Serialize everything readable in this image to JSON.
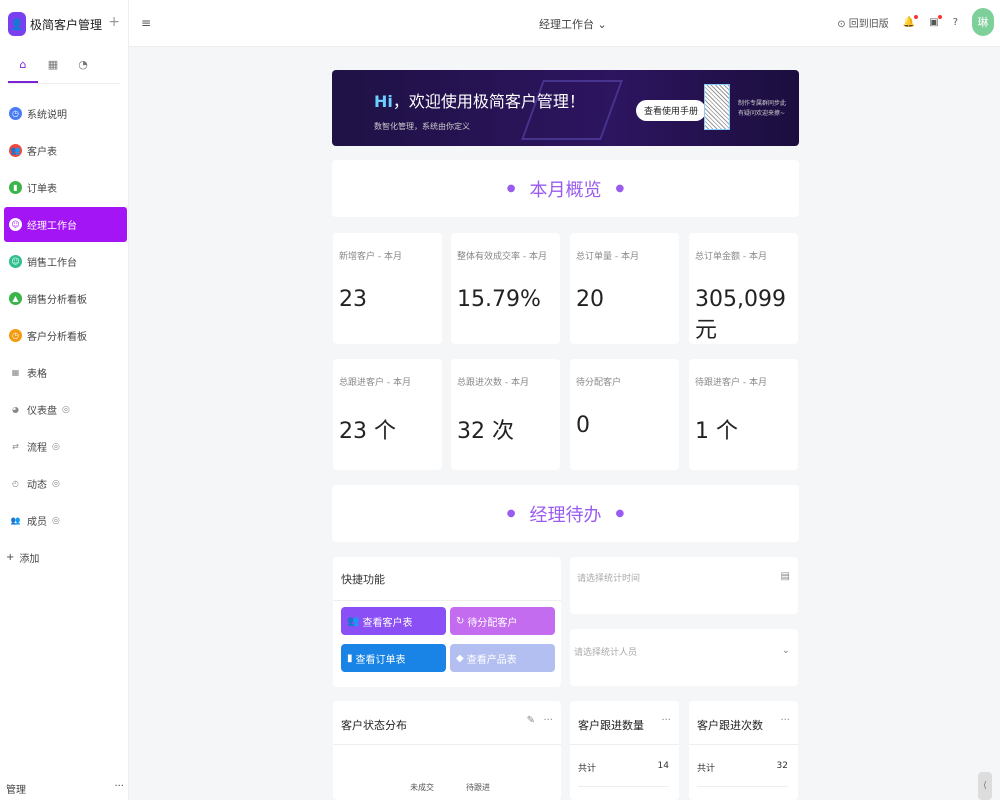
{
  "app": {
    "name": "极简客户管理",
    "avatar": "琳"
  },
  "sidebar": {
    "tabs": [
      "home-icon",
      "table-icon",
      "dashboard-icon"
    ],
    "items": [
      {
        "label": "系统说明",
        "color": "#4a7cf6",
        "icon": "clock-icon"
      },
      {
        "label": "客户表",
        "color": "#f0473f",
        "icon": "users-icon"
      },
      {
        "label": "订单表",
        "color": "#3bb54a",
        "icon": "bag-icon"
      },
      {
        "label": "经理工作台",
        "color": "#a415f5",
        "icon": "face-icon",
        "active": true
      },
      {
        "label": "销售工作台",
        "color": "#2fbf8f",
        "icon": "smile-icon"
      },
      {
        "label": "销售分析看板",
        "color": "#3bb54a",
        "icon": "chart-icon"
      },
      {
        "label": "客户分析看板",
        "color": "#f59a0c",
        "icon": "clock-icon"
      },
      {
        "label": "表格",
        "icon": "grid-icon"
      },
      {
        "label": "仪表盘",
        "icon": "pie-icon",
        "hidden": true
      },
      {
        "label": "流程",
        "icon": "flow-icon",
        "hidden": true
      },
      {
        "label": "动态",
        "icon": "time-icon",
        "hidden": true
      },
      {
        "label": "成员",
        "icon": "members-icon",
        "hidden": true
      }
    ],
    "add": "添加",
    "manage": "管理"
  },
  "header": {
    "title": "经理工作台",
    "old_version": "回到旧版"
  },
  "banner": {
    "hi": "Hi",
    "title": "，欢迎使用极简客户管理！",
    "subtitle": "数智化管理，系统由你定义",
    "button": "查看使用手册",
    "qr_text1": "制作专属群同步此",
    "qr_text2": "有疑问欢迎来撩~"
  },
  "sections": {
    "overview": "本月概览",
    "todo": "经理待办"
  },
  "stats": [
    {
      "label": "新增客户 - 本月",
      "value": "23"
    },
    {
      "label": "整体有效成交率 - 本月",
      "value": "15.79%"
    },
    {
      "label": "总订单量 - 本月",
      "value": "20"
    },
    {
      "label": "总订单金额 - 本月",
      "value": "305,099 元"
    },
    {
      "label": "总跟进客户 - 本月",
      "value": "23 个"
    },
    {
      "label": "总跟进次数 - 本月",
      "value": "32 次"
    },
    {
      "label": "待分配客户",
      "value": "0"
    },
    {
      "label": "待跟进客户 - 本月",
      "value": "1 个"
    }
  ],
  "quick": {
    "title": "快捷功能",
    "buttons": [
      {
        "label": "查看客户表",
        "color": "#8a4ff5"
      },
      {
        "label": "待分配客户",
        "color": "#c46cf0"
      },
      {
        "label": "查看订单表",
        "color": "#1a84e6"
      },
      {
        "label": "查看产品表",
        "color": "#b3bff0"
      }
    ]
  },
  "filters": {
    "time_placeholder": "请选择统计时间",
    "person_placeholder": "请选择统计人员"
  },
  "widgets": {
    "status": {
      "title": "客户状态分布",
      "labels": [
        "未成交",
        "待跟进"
      ]
    },
    "follow_count": {
      "title": "客户跟进数量",
      "total_label": "共计",
      "total": "14"
    },
    "follow_times": {
      "title": "客户跟进次数",
      "total_label": "共计",
      "total": "32"
    }
  }
}
